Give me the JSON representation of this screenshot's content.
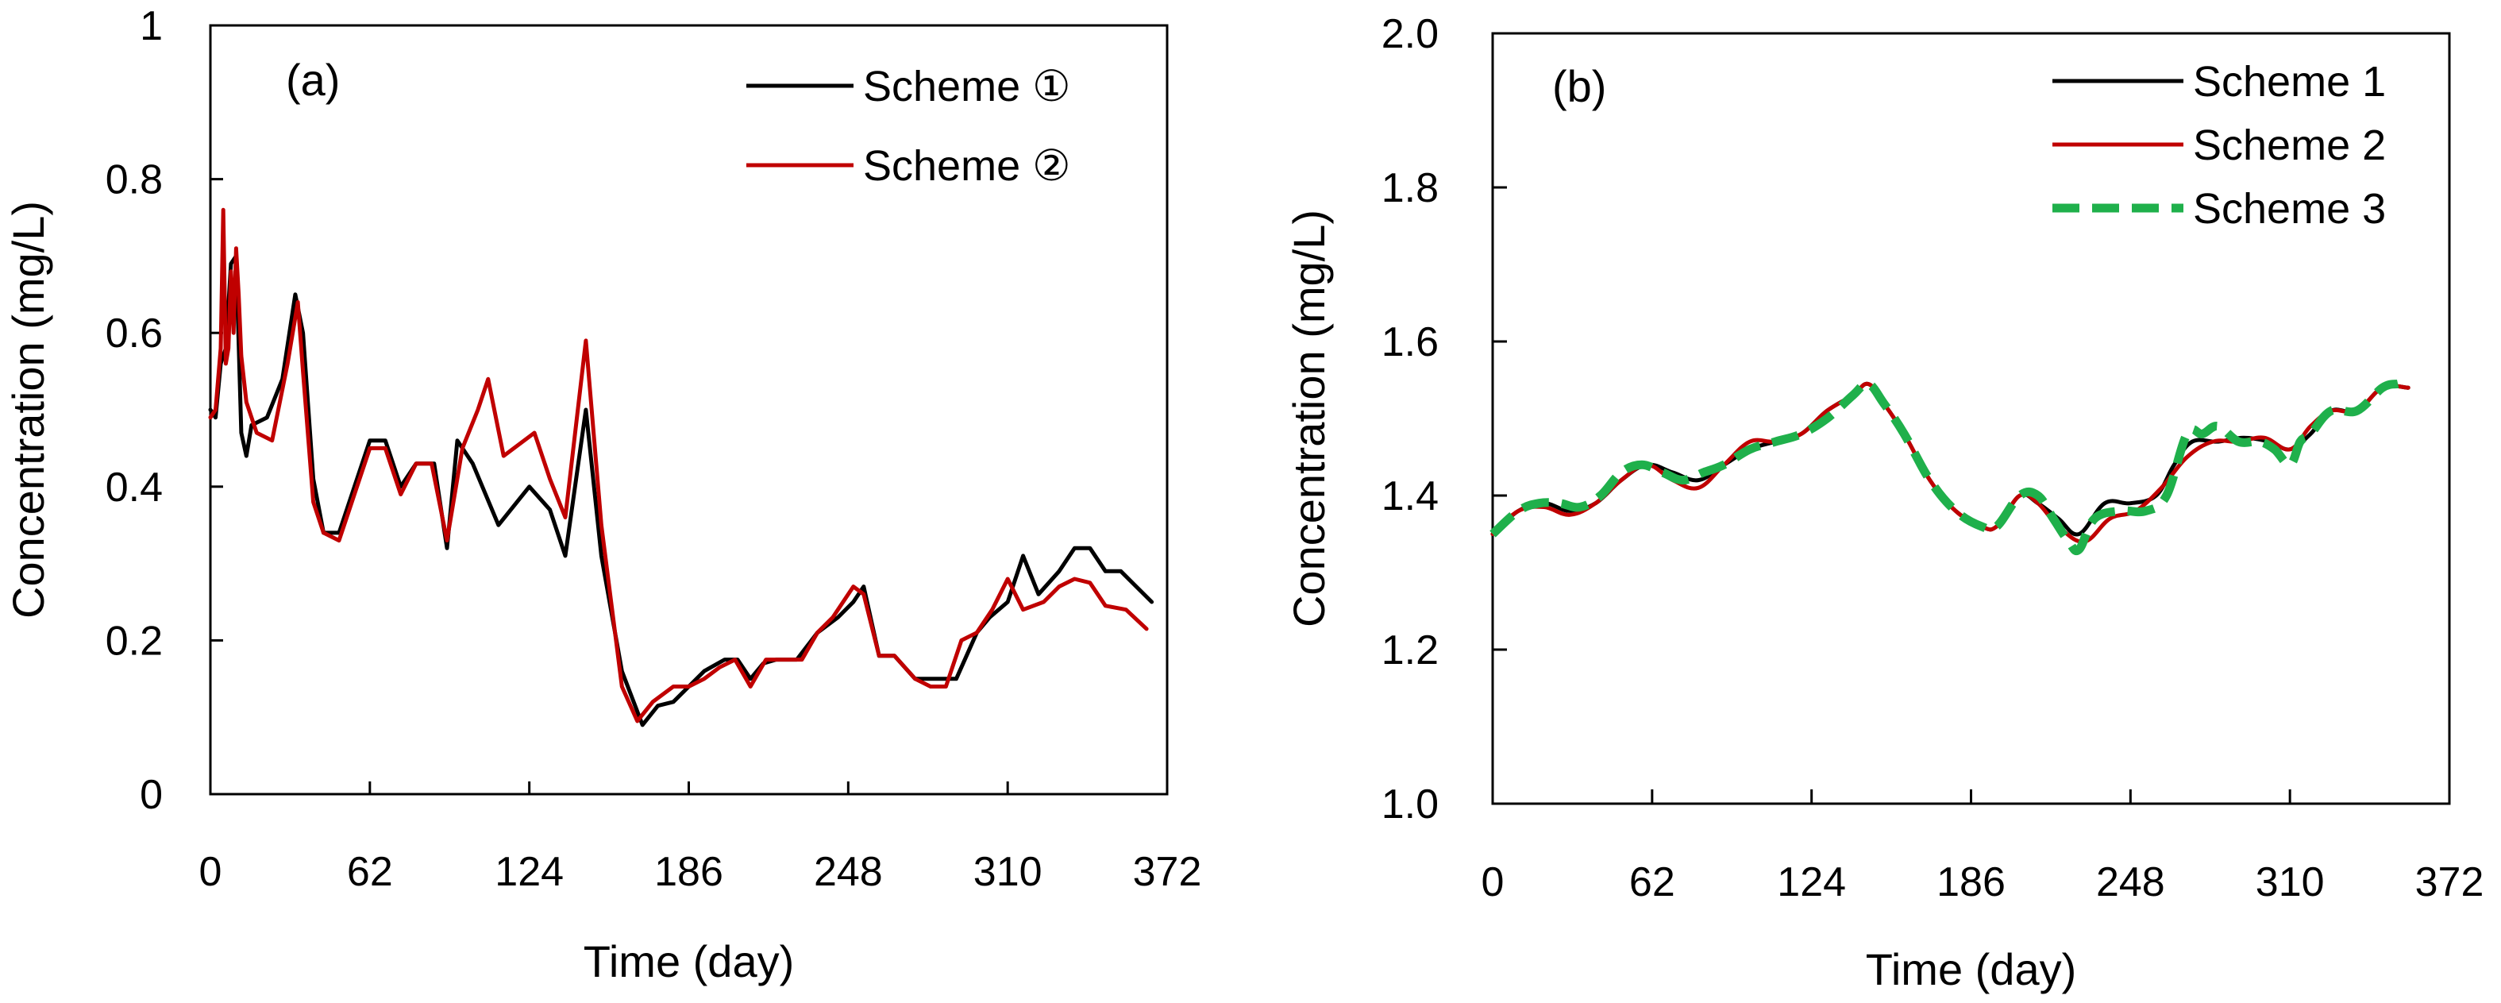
{
  "colors": {
    "scheme_black": "#000000",
    "scheme_red": "#c00000",
    "scheme_green": "#1fb04b"
  },
  "chart_data": [
    {
      "type": "line",
      "panel_label": "(a)",
      "xlabel": "Time (day)",
      "ylabel": "Concentration (mg/L)",
      "xlim": [
        0,
        372
      ],
      "ylim": [
        0,
        1
      ],
      "xticks": [
        0,
        62,
        124,
        186,
        248,
        310,
        372
      ],
      "xtick_labels": [
        "0",
        "62",
        "124",
        "186",
        "248",
        "310",
        "372"
      ],
      "yticks": [
        0,
        0.2,
        0.4,
        0.6,
        0.8,
        1
      ],
      "ytick_labels": [
        "0",
        "0.2",
        "0.4",
        "0.6",
        "0.8",
        "1"
      ],
      "legend_position": "top-right",
      "series": [
        {
          "name": "Scheme ①",
          "color": "#000000",
          "dash": "solid",
          "x": [
            0,
            2,
            4,
            6,
            8,
            10,
            12,
            14,
            16,
            22,
            28,
            33,
            36,
            40,
            44,
            50,
            56,
            62,
            68,
            74,
            80,
            87,
            92,
            96,
            102,
            112,
            124,
            132,
            138,
            146,
            152,
            160,
            168,
            174,
            180,
            186,
            192,
            200,
            205,
            210,
            215,
            220,
            228,
            236,
            244,
            250,
            254,
            260,
            266,
            274,
            282,
            290,
            298,
            303,
            310,
            316,
            322,
            330,
            336,
            342,
            348,
            354,
            360,
            366
          ],
          "y": [
            0.5,
            0.49,
            0.56,
            0.58,
            0.69,
            0.7,
            0.47,
            0.44,
            0.48,
            0.49,
            0.54,
            0.65,
            0.6,
            0.41,
            0.34,
            0.34,
            0.4,
            0.46,
            0.46,
            0.4,
            0.43,
            0.43,
            0.32,
            0.46,
            0.43,
            0.35,
            0.4,
            0.37,
            0.31,
            0.5,
            0.31,
            0.16,
            0.09,
            0.115,
            0.12,
            0.14,
            0.16,
            0.175,
            0.175,
            0.15,
            0.17,
            0.175,
            0.175,
            0.21,
            0.23,
            0.25,
            0.27,
            0.18,
            0.18,
            0.15,
            0.15,
            0.15,
            0.21,
            0.23,
            0.25,
            0.31,
            0.26,
            0.29,
            0.32,
            0.32,
            0.29,
            0.29,
            0.27,
            0.25
          ]
        },
        {
          "name": "Scheme ②",
          "color": "#c00000",
          "dash": "solid",
          "x": [
            0,
            2,
            4,
            5,
            6,
            7,
            8,
            9,
            10,
            11,
            12,
            14,
            18,
            24,
            30,
            34,
            36,
            40,
            44,
            50,
            56,
            62,
            68,
            74,
            80,
            86,
            92,
            98,
            104,
            108,
            114,
            126,
            132,
            138,
            146,
            152,
            160,
            166,
            172,
            180,
            186,
            192,
            198,
            204,
            210,
            216,
            224,
            230,
            236,
            242,
            250,
            254,
            260,
            266,
            274,
            280,
            286,
            292,
            298,
            304,
            310,
            316,
            324,
            330,
            336,
            342,
            348,
            356,
            364
          ],
          "y": [
            0.49,
            0.5,
            0.58,
            0.76,
            0.56,
            0.58,
            0.68,
            0.6,
            0.71,
            0.65,
            0.57,
            0.51,
            0.47,
            0.46,
            0.56,
            0.64,
            0.55,
            0.38,
            0.34,
            0.33,
            0.39,
            0.45,
            0.45,
            0.39,
            0.43,
            0.43,
            0.33,
            0.45,
            0.5,
            0.54,
            0.44,
            0.47,
            0.41,
            0.36,
            0.59,
            0.35,
            0.14,
            0.095,
            0.12,
            0.14,
            0.14,
            0.15,
            0.165,
            0.175,
            0.14,
            0.175,
            0.175,
            0.175,
            0.21,
            0.23,
            0.27,
            0.26,
            0.18,
            0.18,
            0.15,
            0.14,
            0.14,
            0.2,
            0.21,
            0.24,
            0.28,
            0.24,
            0.25,
            0.27,
            0.28,
            0.275,
            0.245,
            0.24,
            0.215
          ]
        }
      ]
    },
    {
      "type": "line",
      "panel_label": "(b)",
      "xlabel": "Time (day)",
      "ylabel": "Concentration (mg/L)",
      "xlim": [
        0,
        372
      ],
      "ylim": [
        1.0,
        2.0
      ],
      "xticks": [
        0,
        62,
        124,
        186,
        248,
        310,
        372
      ],
      "xtick_labels": [
        "0",
        "62",
        "124",
        "186",
        "248",
        "310",
        "372"
      ],
      "yticks": [
        1.0,
        1.2,
        1.4,
        1.6,
        1.8,
        2.0
      ],
      "ytick_labels": [
        "1.0",
        "1.2",
        "1.4",
        "1.6",
        "1.8",
        "2.0"
      ],
      "legend_position": "top-right",
      "series": [
        {
          "name": "Scheme 1",
          "color": "#000000",
          "dash": "solid",
          "x": [
            0,
            10,
            20,
            30,
            40,
            50,
            60,
            70,
            80,
            90,
            100,
            110,
            120,
            130,
            140,
            146,
            152,
            160,
            170,
            180,
            190,
            196,
            205,
            212,
            220,
            228,
            238,
            248,
            258,
            265,
            272,
            282,
            292,
            302,
            310,
            318,
            326,
            336,
            346,
            356
          ],
          "y": [
            1.35,
            1.38,
            1.39,
            1.38,
            1.39,
            1.42,
            1.44,
            1.43,
            1.42,
            1.44,
            1.46,
            1.47,
            1.48,
            1.51,
            1.53,
            1.545,
            1.52,
            1.48,
            1.42,
            1.38,
            1.36,
            1.36,
            1.4,
            1.39,
            1.37,
            1.35,
            1.39,
            1.39,
            1.4,
            1.44,
            1.47,
            1.47,
            1.475,
            1.47,
            1.46,
            1.48,
            1.51,
            1.51,
            1.54,
            1.54
          ]
        },
        {
          "name": "Scheme 2",
          "color": "#c00000",
          "dash": "solid",
          "x": [
            0,
            10,
            20,
            30,
            40,
            50,
            60,
            70,
            80,
            90,
            100,
            110,
            120,
            130,
            140,
            146,
            152,
            160,
            170,
            180,
            190,
            196,
            205,
            212,
            220,
            230,
            240,
            250,
            260,
            270,
            280,
            290,
            300,
            310,
            318,
            326,
            336,
            346,
            356
          ],
          "y": [
            1.35,
            1.38,
            1.385,
            1.375,
            1.39,
            1.42,
            1.44,
            1.42,
            1.41,
            1.44,
            1.47,
            1.47,
            1.48,
            1.51,
            1.53,
            1.545,
            1.52,
            1.48,
            1.42,
            1.38,
            1.36,
            1.36,
            1.4,
            1.39,
            1.36,
            1.34,
            1.37,
            1.38,
            1.41,
            1.45,
            1.47,
            1.47,
            1.475,
            1.46,
            1.49,
            1.51,
            1.51,
            1.54,
            1.54
          ]
        },
        {
          "name": "Scheme 3",
          "color": "#1fb04b",
          "dash": "dashed",
          "x": [
            0,
            10,
            18,
            26,
            34,
            42,
            50,
            58,
            66,
            74,
            82,
            90,
            100,
            110,
            120,
            130,
            140,
            146,
            152,
            160,
            170,
            180,
            190,
            196,
            205,
            212,
            218,
            224,
            228,
            234,
            244,
            254,
            262,
            270,
            276,
            282,
            290,
            298,
            304,
            310,
            314,
            318,
            326,
            336,
            346,
            352
          ],
          "y": [
            1.35,
            1.38,
            1.39,
            1.39,
            1.385,
            1.4,
            1.43,
            1.44,
            1.43,
            1.42,
            1.43,
            1.44,
            1.46,
            1.47,
            1.48,
            1.5,
            1.53,
            1.545,
            1.52,
            1.48,
            1.42,
            1.38,
            1.36,
            1.36,
            1.4,
            1.4,
            1.37,
            1.34,
            1.33,
            1.37,
            1.38,
            1.38,
            1.4,
            1.48,
            1.48,
            1.49,
            1.47,
            1.47,
            1.46,
            1.44,
            1.47,
            1.48,
            1.51,
            1.51,
            1.54,
            1.545
          ]
        }
      ]
    }
  ]
}
